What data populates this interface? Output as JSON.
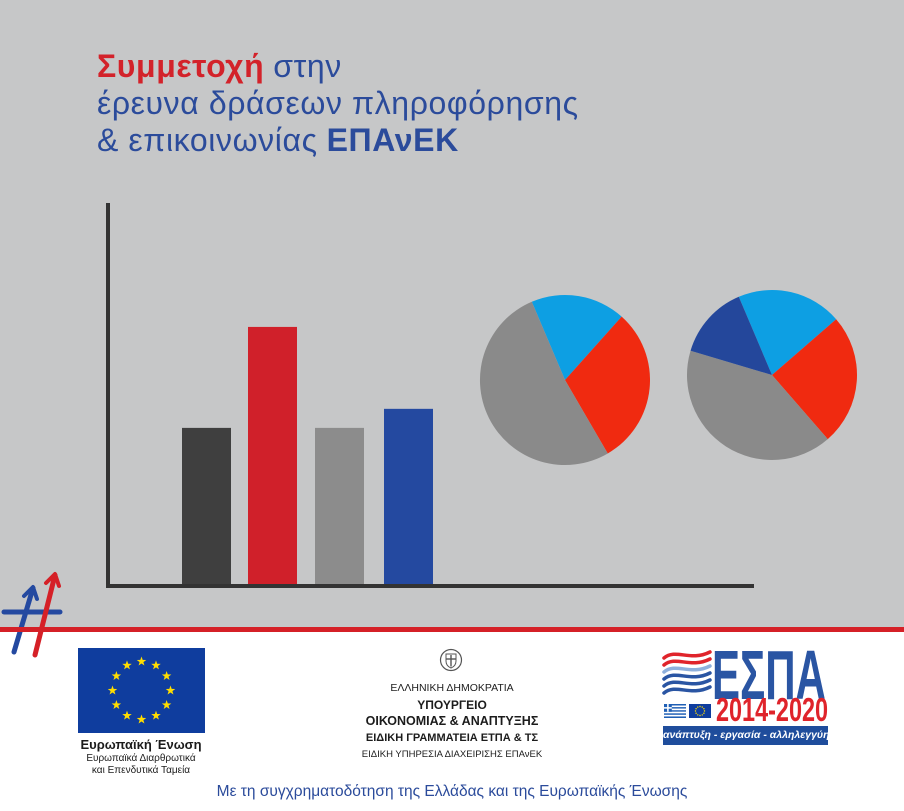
{
  "title": {
    "line1_highlight": "Συμμετοχή",
    "line1_rest": "στην",
    "line2": "έρευνα δράσεων πληροφόρησης",
    "line3_rest": "& επικοινωνίας",
    "line3_highlight": "ΕΠΑνΕΚ"
  },
  "colors": {
    "panel_background": "#c6c7c8",
    "accent_red": "#d3222a",
    "accent_blue": "#2b4b9b",
    "axis": "#333333"
  },
  "icons": {
    "hashtag": "hashtag-arrows-icon",
    "emblem": "greek-coat-of-arms-icon",
    "eu_flag": "eu-flag-icon",
    "espa_waves": "espa-waves-icon",
    "greek_flag": "greek-flag-icon"
  },
  "chart_data": [
    {
      "type": "bar",
      "values": [
        41.5,
        68,
        41.5,
        46.5
      ],
      "colors": [
        "#3f3f3f",
        "#d0202a",
        "#8c8c8c",
        "#2449a0"
      ],
      "ylim": [
        0,
        100
      ]
    },
    {
      "type": "pie",
      "values": [
        18,
        30,
        52
      ],
      "colors": [
        "#0d9fe3",
        "#f02a10",
        "#8a8a8a"
      ]
    },
    {
      "type": "pie",
      "values": [
        20,
        25,
        41,
        14
      ],
      "colors": [
        "#0d9fe3",
        "#f02a10",
        "#8a8a8a",
        "#24479b"
      ]
    }
  ],
  "footer": {
    "eu": {
      "name": "Ευρωπαϊκή Ένωση",
      "line2": "Ευρωπαϊκά Διαρθρωτικά",
      "line3": "και Επενδυτικά Ταμεία"
    },
    "ministry": {
      "line1": "ΕΛΛΗΝΙΚΗ ΔΗΜΟΚΡΑΤΙΑ",
      "line2": "ΥΠΟΥΡΓΕΙΟ",
      "line3": "ΟΙΚΟΝΟΜΙΑΣ & ΑΝΑΠΤΥΞΗΣ",
      "line4": "ΕΙΔΙΚΗ ΓΡΑΜΜΑΤΕΙΑ ΕΤΠΑ & ΤΣ",
      "line5": "ΕΙΔΙΚΗ ΥΠΗΡΕΣΙΑ ΔΙΑΧΕΙΡΙΣΗΣ ΕΠΑνΕΚ"
    },
    "espa": {
      "name": "ΕΣΠΑ",
      "years": "2014-2020",
      "motto": "ανάπτυξη - εργασία - αλληλεγγύη"
    },
    "cofunding": "Με τη συγχρηματοδότηση της Ελλάδας και της Ευρωπαϊκής Ένωσης"
  }
}
